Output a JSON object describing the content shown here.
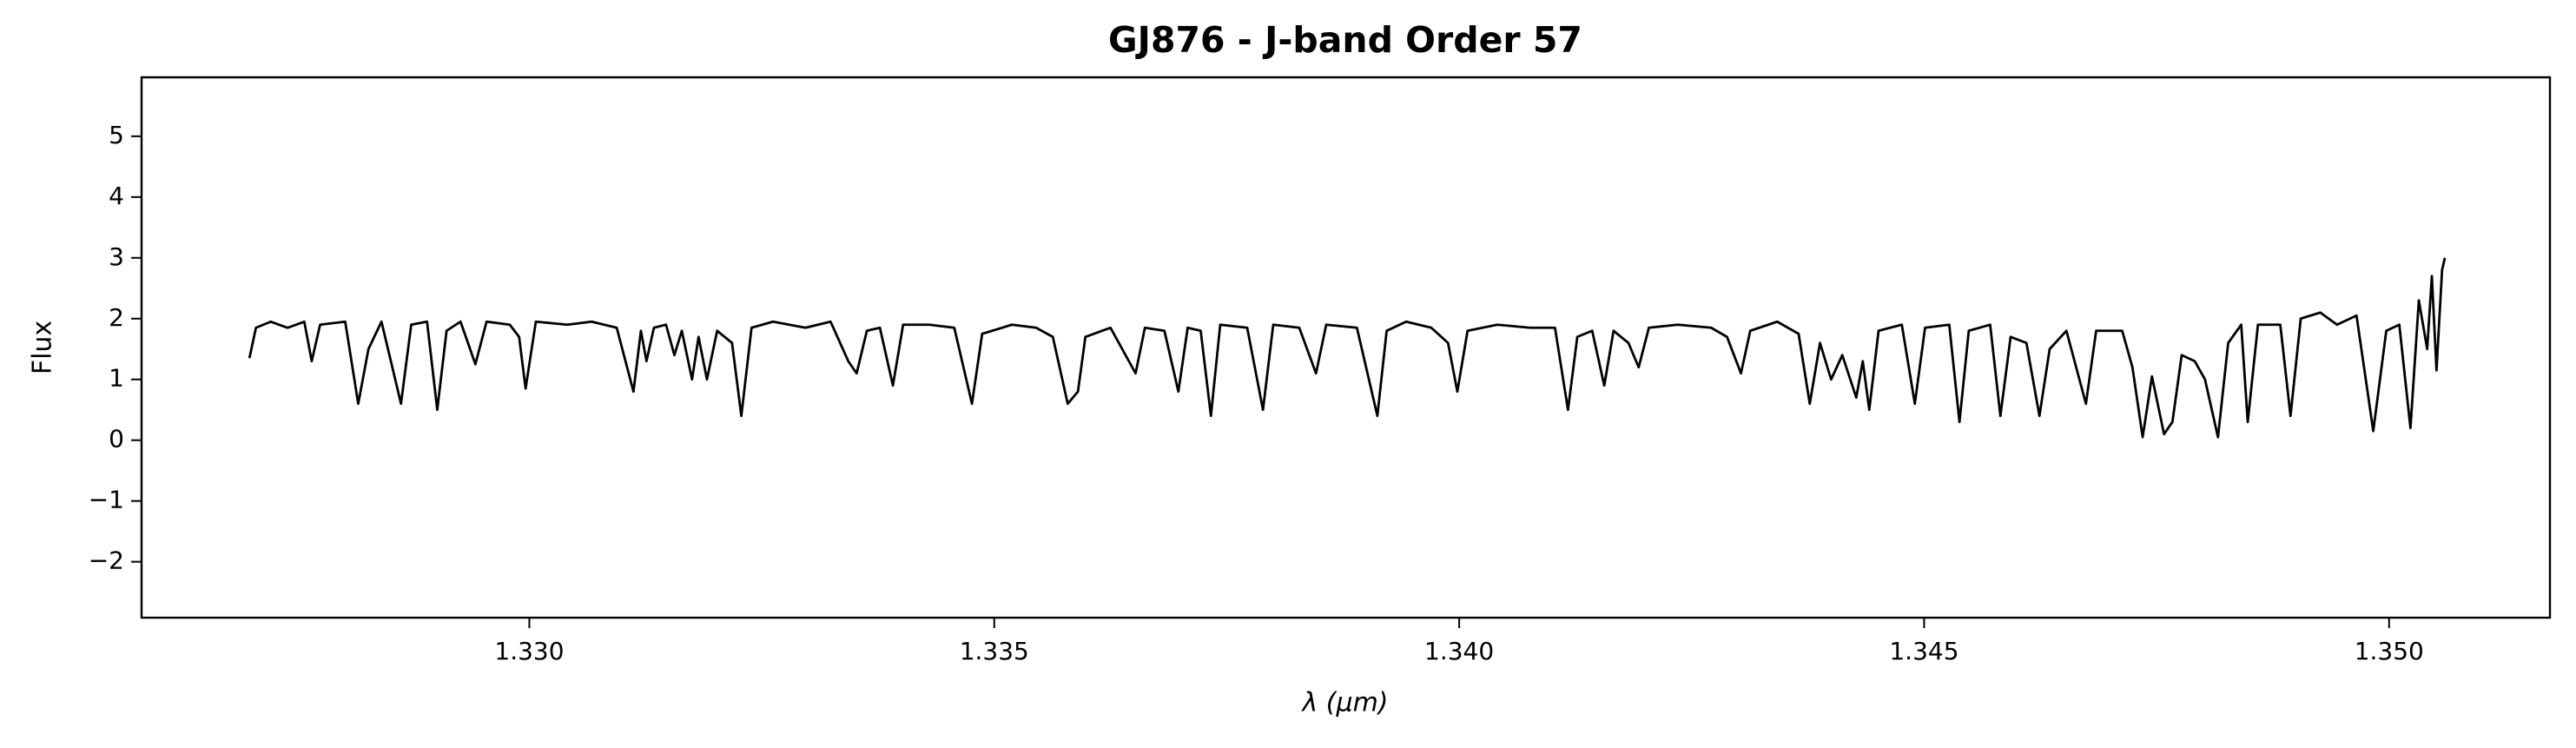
{
  "chart_data": {
    "type": "line",
    "title": "GJ876 - J-band Order 57",
    "x_label": "λ (μm)",
    "y_label": "Flux",
    "xlim": [
      1.32583,
      1.35173
    ],
    "ylim": [
      -2.92,
      5.97
    ],
    "xticks": [
      {
        "value": 1.33,
        "label": "1.330"
      },
      {
        "value": 1.335,
        "label": "1.335"
      },
      {
        "value": 1.34,
        "label": "1.340"
      },
      {
        "value": 1.345,
        "label": "1.345"
      },
      {
        "value": 1.35,
        "label": "1.350"
      }
    ],
    "yticks": [
      {
        "value": -2,
        "label": "−2"
      },
      {
        "value": -1,
        "label": "−1"
      },
      0,
      1,
      2,
      3,
      4,
      5
    ],
    "grid": false,
    "series": [
      {
        "color": "#000000",
        "x": [
          1.32699,
          1.32706,
          1.32722,
          1.3274,
          1.32758,
          1.32766,
          1.32775,
          1.32802,
          1.32816,
          1.32827,
          1.32841,
          1.32862,
          1.32873,
          1.3289,
          1.32901,
          1.32911,
          1.32926,
          1.32942,
          1.32954,
          1.32979,
          1.32989,
          1.32996,
          1.33007,
          1.33041,
          1.33067,
          1.33094,
          1.33112,
          1.3312,
          1.33126,
          1.33134,
          1.33147,
          1.33156,
          1.33164,
          1.33175,
          1.33182,
          1.33191,
          1.33202,
          1.33218,
          1.33228,
          1.33239,
          1.33262,
          1.33297,
          1.33324,
          1.33343,
          1.33352,
          1.33363,
          1.33377,
          1.33391,
          1.33402,
          1.3343,
          1.33457,
          1.33476,
          1.33487,
          1.33519,
          1.33545,
          1.33563,
          1.33579,
          1.3359,
          1.33598,
          1.33625,
          1.33652,
          1.33662,
          1.33683,
          1.33698,
          1.33708,
          1.33722,
          1.33733,
          1.33743,
          1.33772,
          1.33789,
          1.338,
          1.33828,
          1.33846,
          1.33857,
          1.3389,
          1.33912,
          1.33922,
          1.33943,
          1.3397,
          1.33988,
          1.33998,
          1.34009,
          1.34041,
          1.34076,
          1.34103,
          1.34117,
          1.34127,
          1.34143,
          1.34156,
          1.34166,
          1.34182,
          1.34193,
          1.34204,
          1.34235,
          1.34271,
          1.34288,
          1.34303,
          1.34313,
          1.34342,
          1.34365,
          1.34377,
          1.34388,
          1.344,
          1.34412,
          1.34427,
          1.34434,
          1.34441,
          1.34451,
          1.34476,
          1.3449,
          1.34501,
          1.34527,
          1.34538,
          1.34548,
          1.34571,
          1.34582,
          1.34593,
          1.3461,
          1.34624,
          1.34635,
          1.34653,
          1.34674,
          1.34685,
          1.34713,
          1.34724,
          1.34735,
          1.34745,
          1.34758,
          1.34767,
          1.34777,
          1.34791,
          1.34802,
          1.34816,
          1.34827,
          1.34841,
          1.34848,
          1.34859,
          1.34883,
          1.34894,
          1.34905,
          1.34926,
          1.34944,
          1.34965,
          1.34983,
          1.34997,
          1.35011,
          1.35023,
          1.35032,
          1.35041,
          1.35046,
          1.35051,
          1.35057,
          1.3506
        ],
        "values": [
          1.35,
          1.85,
          1.95,
          1.85,
          1.95,
          1.3,
          1.9,
          1.95,
          0.6,
          1.5,
          1.95,
          0.6,
          1.9,
          1.95,
          0.5,
          1.8,
          1.95,
          1.25,
          1.95,
          1.9,
          1.7,
          0.85,
          1.95,
          1.9,
          1.95,
          1.85,
          0.8,
          1.8,
          1.3,
          1.85,
          1.9,
          1.4,
          1.8,
          1.0,
          1.7,
          1.0,
          1.8,
          1.6,
          0.4,
          1.85,
          1.95,
          1.85,
          1.95,
          1.3,
          1.1,
          1.8,
          1.85,
          0.9,
          1.9,
          1.9,
          1.85,
          0.6,
          1.75,
          1.9,
          1.85,
          1.7,
          0.6,
          0.8,
          1.7,
          1.85,
          1.1,
          1.85,
          1.8,
          0.8,
          1.85,
          1.8,
          0.4,
          1.9,
          1.85,
          0.5,
          1.9,
          1.85,
          1.1,
          1.9,
          1.85,
          0.4,
          1.8,
          1.95,
          1.85,
          1.6,
          0.8,
          1.8,
          1.9,
          1.85,
          1.85,
          0.5,
          1.7,
          1.8,
          0.9,
          1.8,
          1.6,
          1.2,
          1.85,
          1.9,
          1.85,
          1.7,
          1.1,
          1.8,
          1.95,
          1.75,
          0.6,
          1.6,
          1.0,
          1.4,
          0.7,
          1.3,
          0.5,
          1.8,
          1.9,
          0.6,
          1.85,
          1.9,
          0.3,
          1.8,
          1.9,
          0.4,
          1.7,
          1.6,
          0.4,
          1.5,
          1.8,
          0.6,
          1.8,
          1.8,
          1.2,
          0.05,
          1.05,
          0.1,
          0.3,
          1.4,
          1.3,
          1.0,
          0.05,
          1.6,
          1.9,
          0.3,
          1.9,
          1.9,
          0.4,
          2.0,
          2.1,
          1.9,
          2.05,
          0.15,
          1.8,
          1.9,
          0.2,
          2.3,
          1.5,
          2.7,
          1.15,
          2.8,
          3.0
        ]
      }
    ]
  }
}
